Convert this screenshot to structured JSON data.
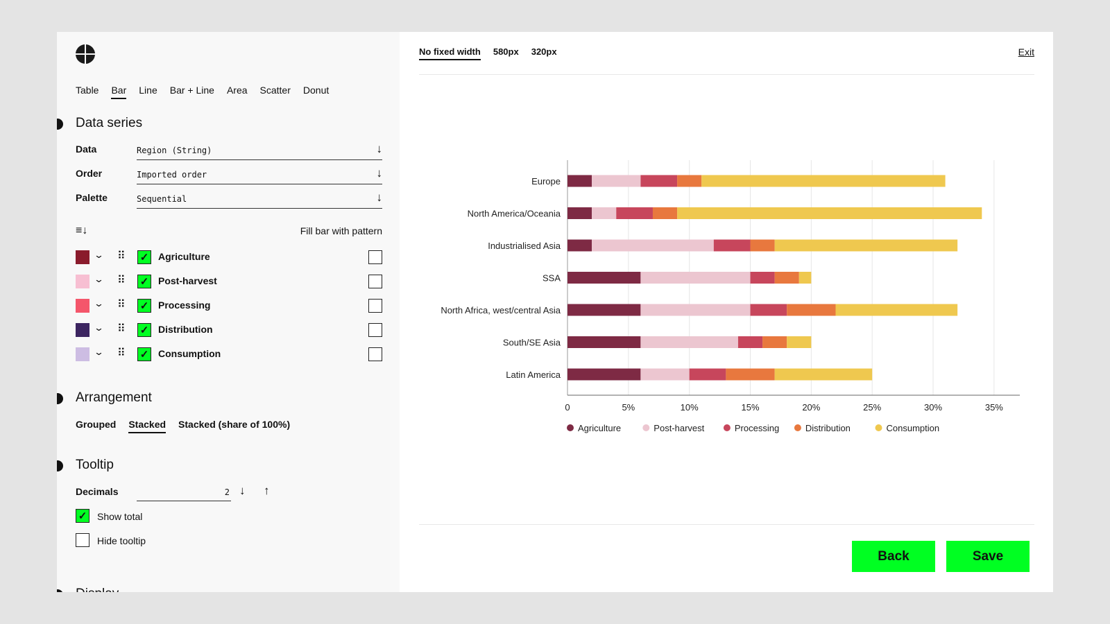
{
  "chart_types": {
    "items": [
      "Table",
      "Bar",
      "Line",
      "Bar + Line",
      "Area",
      "Scatter",
      "Donut"
    ],
    "active": "Bar"
  },
  "data_series": {
    "title": "Data series",
    "data": {
      "label": "Data",
      "value": "Region (String)"
    },
    "order": {
      "label": "Order",
      "value": "Imported order"
    },
    "palette": {
      "label": "Palette",
      "value": "Sequential"
    },
    "fill_label": "Fill bar with pattern",
    "series": [
      {
        "name": "Agriculture",
        "color": "#8a1b2c"
      },
      {
        "name": "Post-harvest",
        "color": "#f7bfd2"
      },
      {
        "name": "Processing",
        "color": "#f4566b"
      },
      {
        "name": "Distribution",
        "color": "#3c2560"
      },
      {
        "name": "Consumption",
        "color": "#cdbde3"
      }
    ]
  },
  "arrangement": {
    "title": "Arrangement",
    "options": [
      "Grouped",
      "Stacked",
      "Stacked (share of 100%)"
    ],
    "active": "Stacked"
  },
  "tooltip": {
    "title": "Tooltip",
    "decimals_label": "Decimals",
    "decimals_value": "2",
    "show_total": "Show total",
    "hide_tooltip": "Hide tooltip"
  },
  "display": {
    "title": "Display"
  },
  "preview": {
    "widths": [
      "No fixed width",
      "580px",
      "320px"
    ],
    "active_width": "No fixed width",
    "exit": "Exit",
    "back": "Back",
    "save": "Save"
  },
  "chart_data": {
    "type": "bar",
    "orientation": "horizontal",
    "stacked": true,
    "categories": [
      "Europe",
      "North America/Oceania",
      "Industrialised Asia",
      "SSA",
      "North Africa, west/central Asia",
      "South/SE Asia",
      "Latin America"
    ],
    "series": [
      {
        "name": "Agriculture",
        "color": "#7e2a44",
        "values": [
          2,
          2,
          2,
          6,
          6,
          6,
          6
        ]
      },
      {
        "name": "Post-harvest",
        "color": "#ecc6d0",
        "values": [
          4,
          2,
          10,
          9,
          9,
          8,
          4
        ]
      },
      {
        "name": "Processing",
        "color": "#c7465c",
        "values": [
          3,
          3,
          3,
          2,
          3,
          2,
          3
        ]
      },
      {
        "name": "Distribution",
        "color": "#e8783e",
        "values": [
          2,
          2,
          2,
          2,
          4,
          2,
          4
        ]
      },
      {
        "name": "Consumption",
        "color": "#efc84f",
        "values": [
          20,
          25,
          15,
          1,
          10,
          2,
          8
        ]
      }
    ],
    "xlim": [
      0,
      37
    ],
    "ticks": [
      0,
      5,
      10,
      15,
      20,
      25,
      30,
      35
    ],
    "tick_labels": [
      "0",
      "5%",
      "10%",
      "15%",
      "20%",
      "25%",
      "30%",
      "35%"
    ],
    "grid": true,
    "legend": "bottom-left"
  }
}
